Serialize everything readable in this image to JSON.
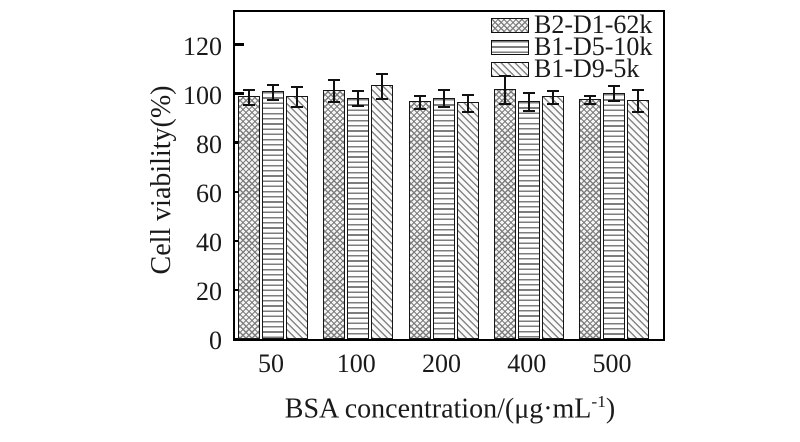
{
  "figure": {
    "ylabel": "Cell viability(%)",
    "xlabel_prefix": "BSA concentration/(μg·mL",
    "xlabel_sup": "-1",
    "xlabel_suffix": ")"
  },
  "chart_data": {
    "type": "bar",
    "title": "",
    "categories": [
      "50",
      "100",
      "200",
      "400",
      "500"
    ],
    "xlabel": "BSA concentration/(μg·mL⁻¹)",
    "ylabel": "Cell viability(%)",
    "ylim": [
      0,
      135
    ],
    "yticks": [
      0,
      20,
      40,
      60,
      80,
      100,
      120
    ],
    "grid": false,
    "error_bars": true,
    "legend_position": "top-right-inside",
    "series": [
      {
        "name": "B2-D1-62k",
        "pattern": "crosshatch",
        "values": [
          99,
          101.5,
          97,
          102,
          98
        ],
        "errors": [
          3.5,
          5,
          3,
          6,
          2
        ]
      },
      {
        "name": "B1-D5-10k",
        "pattern": "horizontal-lines",
        "values": [
          101,
          98.5,
          98.5,
          97,
          100.5
        ],
        "errors": [
          3.5,
          3.5,
          4,
          4,
          3.5
        ]
      },
      {
        "name": "B1-D9-5k",
        "pattern": "diagonal-lines",
        "values": [
          99,
          103.5,
          96.5,
          99,
          97.5
        ],
        "errors": [
          4.5,
          5.5,
          4,
          3,
          5
        ]
      }
    ]
  },
  "colors": {
    "foreground": "#1a1a1a",
    "background": "#ffffff",
    "pattern_line": "#7e7e7e"
  }
}
